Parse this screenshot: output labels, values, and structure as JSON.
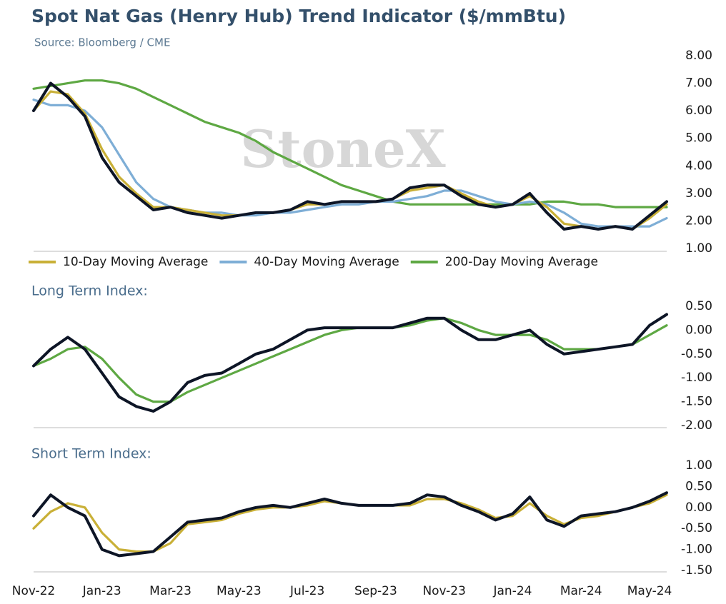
{
  "chart_data": [
    {
      "type": "line",
      "title": "Spot Nat Gas (Henry Hub) Trend Indicator ($/mmBtu)",
      "subtitle": "Source: Bloomberg / CME",
      "watermark": "StoneX",
      "ylim": [
        1,
        8
      ],
      "yticks": [
        {
          "value": 1,
          "label": "1.00"
        },
        {
          "value": 2,
          "label": "2.00"
        },
        {
          "value": 3,
          "label": "3.00"
        },
        {
          "value": 4,
          "label": "4.00"
        },
        {
          "value": 5,
          "label": "5.00"
        },
        {
          "value": 6,
          "label": "6.00"
        },
        {
          "value": 7,
          "label": "7.00"
        },
        {
          "value": 8,
          "label": "8.00"
        }
      ],
      "legend": "bottom",
      "series": [
        {
          "color": "#0d1526",
          "values": [
            6.0,
            7.0,
            6.5,
            5.8,
            4.3,
            3.4,
            2.9,
            2.4,
            2.5,
            2.3,
            2.2,
            2.1,
            2.2,
            2.3,
            2.3,
            2.4,
            2.7,
            2.6,
            2.7,
            2.7,
            2.7,
            2.8,
            3.2,
            3.3,
            3.3,
            2.9,
            2.6,
            2.5,
            2.6,
            3.0,
            2.3,
            1.7,
            1.8,
            1.7,
            1.8,
            1.7,
            2.2,
            2.7
          ]
        },
        {
          "name": "10-Day Moving Average",
          "color": "#c9b037",
          "values": [
            6.0,
            6.7,
            6.6,
            5.9,
            4.6,
            3.6,
            3.0,
            2.5,
            2.5,
            2.4,
            2.3,
            2.2,
            2.2,
            2.3,
            2.3,
            2.4,
            2.6,
            2.6,
            2.7,
            2.7,
            2.7,
            2.8,
            3.1,
            3.2,
            3.3,
            3.0,
            2.7,
            2.5,
            2.6,
            2.9,
            2.5,
            1.9,
            1.8,
            1.7,
            1.8,
            1.7,
            2.1,
            2.6
          ]
        },
        {
          "name": "40-Day Moving Average",
          "color": "#7eaed6",
          "values": [
            6.4,
            6.2,
            6.2,
            6.0,
            5.4,
            4.4,
            3.4,
            2.8,
            2.5,
            2.4,
            2.3,
            2.3,
            2.2,
            2.2,
            2.3,
            2.3,
            2.4,
            2.5,
            2.6,
            2.6,
            2.7,
            2.7,
            2.8,
            2.9,
            3.1,
            3.1,
            2.9,
            2.7,
            2.6,
            2.7,
            2.6,
            2.3,
            1.9,
            1.8,
            1.8,
            1.8,
            1.8,
            2.1
          ]
        },
        {
          "name": "200-Day Moving Average",
          "color": "#5ea843",
          "values": [
            6.8,
            6.9,
            7.0,
            7.1,
            7.1,
            7.0,
            6.8,
            6.5,
            6.2,
            5.9,
            5.6,
            5.4,
            5.2,
            4.9,
            4.5,
            4.2,
            3.9,
            3.6,
            3.3,
            3.1,
            2.9,
            2.7,
            2.6,
            2.6,
            2.6,
            2.6,
            2.6,
            2.6,
            2.6,
            2.6,
            2.7,
            2.7,
            2.6,
            2.6,
            2.5,
            2.5,
            2.5,
            2.5
          ]
        }
      ]
    },
    {
      "type": "line",
      "title": "Long Term Index:",
      "ylim": [
        -2,
        0.5
      ],
      "yticks": [
        {
          "value": 0.5,
          "label": "0.50"
        },
        {
          "value": 0,
          "label": "0.00"
        },
        {
          "value": -0.5,
          "label": "-0.50"
        },
        {
          "value": -1,
          "label": "-1.00"
        },
        {
          "value": -1.5,
          "label": "-1.50"
        },
        {
          "value": -2,
          "label": "-2.00"
        }
      ],
      "series": [
        {
          "color": "#0d1526",
          "values": [
            -0.75,
            -0.4,
            -0.15,
            -0.4,
            -0.9,
            -1.4,
            -1.6,
            -1.7,
            -1.5,
            -1.1,
            -0.95,
            -0.9,
            -0.7,
            -0.5,
            -0.4,
            -0.2,
            0.0,
            0.05,
            0.05,
            0.05,
            0.05,
            0.05,
            0.15,
            0.25,
            0.25,
            0.0,
            -0.2,
            -0.2,
            -0.1,
            0.0,
            -0.3,
            -0.5,
            -0.45,
            -0.4,
            -0.35,
            -0.3,
            0.1,
            0.33
          ]
        },
        {
          "color": "#5ea843",
          "values": [
            -0.75,
            -0.6,
            -0.4,
            -0.35,
            -0.6,
            -1.0,
            -1.35,
            -1.5,
            -1.5,
            -1.3,
            -1.15,
            -1.0,
            -0.85,
            -0.7,
            -0.55,
            -0.4,
            -0.25,
            -0.1,
            0.0,
            0.05,
            0.05,
            0.05,
            0.1,
            0.2,
            0.25,
            0.15,
            0.0,
            -0.1,
            -0.1,
            -0.1,
            -0.2,
            -0.4,
            -0.4,
            -0.4,
            -0.35,
            -0.3,
            -0.1,
            0.1
          ]
        }
      ]
    },
    {
      "type": "line",
      "title": "Short Term Index:",
      "categories": [
        "Nov-22",
        null,
        null,
        null,
        "Jan-23",
        null,
        null,
        null,
        "Mar-23",
        null,
        null,
        null,
        "May-23",
        null,
        null,
        null,
        "Jul-23",
        null,
        null,
        null,
        "Sep-23",
        null,
        null,
        null,
        "Nov-23",
        null,
        null,
        null,
        "Jan-24",
        null,
        null,
        null,
        "Mar-24",
        null,
        null,
        null,
        "May-24",
        null
      ],
      "ylim": [
        -1.5,
        1
      ],
      "yticks": [
        {
          "value": 1,
          "label": "1.00"
        },
        {
          "value": 0.5,
          "label": "0.50"
        },
        {
          "value": 0,
          "label": "0.00"
        },
        {
          "value": -0.5,
          "label": "-0.50"
        },
        {
          "value": -1,
          "label": "-1.00"
        },
        {
          "value": -1.5,
          "label": "-1.50"
        }
      ],
      "series": [
        {
          "color": "#0d1526",
          "values": [
            -0.2,
            0.3,
            0.0,
            -0.2,
            -1.0,
            -1.15,
            -1.1,
            -1.05,
            -0.7,
            -0.35,
            -0.3,
            -0.25,
            -0.1,
            0.0,
            0.05,
            0.0,
            0.1,
            0.2,
            0.1,
            0.05,
            0.05,
            0.05,
            0.1,
            0.3,
            0.25,
            0.05,
            -0.1,
            -0.3,
            -0.15,
            0.25,
            -0.3,
            -0.45,
            -0.2,
            -0.15,
            -0.1,
            0.0,
            0.15,
            0.35
          ]
        },
        {
          "color": "#c9b037",
          "values": [
            -0.5,
            -0.1,
            0.1,
            0.0,
            -0.6,
            -1.0,
            -1.05,
            -1.05,
            -0.85,
            -0.4,
            -0.35,
            -0.3,
            -0.15,
            -0.05,
            0.0,
            0.0,
            0.05,
            0.15,
            0.1,
            0.05,
            0.05,
            0.05,
            0.05,
            0.2,
            0.2,
            0.1,
            -0.05,
            -0.25,
            -0.2,
            0.1,
            -0.2,
            -0.4,
            -0.25,
            -0.2,
            -0.1,
            0.0,
            0.1,
            0.3
          ]
        }
      ]
    }
  ]
}
